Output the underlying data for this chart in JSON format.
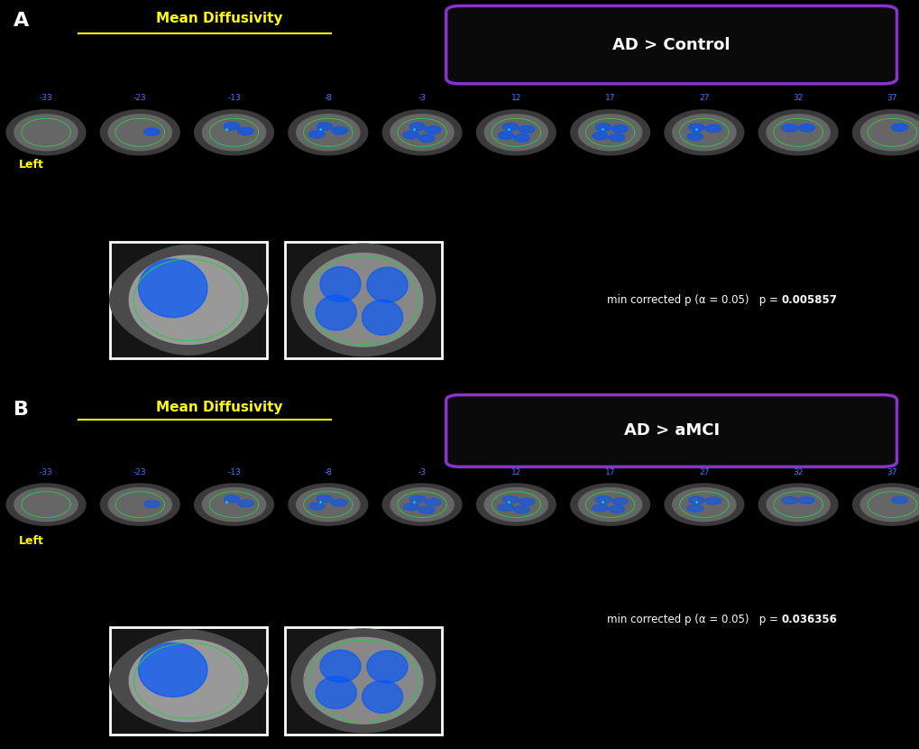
{
  "background_color": "#000000",
  "border_color": "#1a6aaa",
  "panel_a": {
    "label": "A",
    "title": "Mean Diffusivity",
    "title_color": "#ffff00",
    "box_label": "AD > Control",
    "box_text_color": "#ffffff",
    "box_bg_color": "#0a0a0a",
    "box_border_color": "#8833cc",
    "slice_numbers": [
      "-33",
      "-23",
      "-13",
      "-8",
      "-3",
      "12",
      "17",
      "27",
      "32",
      "37"
    ],
    "slice_number_color": "#4477ff",
    "left_label": "Left",
    "left_label_color": "#ffff00",
    "p_text_normal": "min corrected p (α = 0.05)   p =",
    "p_text_bold": "0.005857",
    "p_text_color": "#ffffff"
  },
  "panel_b": {
    "label": "B",
    "title": "Mean Diffusivity",
    "title_color": "#ffff00",
    "box_label": "AD > aMCI",
    "box_text_color": "#ffffff",
    "box_bg_color": "#0a0a0a",
    "box_border_color": "#8833cc",
    "slice_numbers": [
      "-33",
      "-23",
      "-13",
      "-8",
      "-3",
      "12",
      "17",
      "27",
      "32",
      "37"
    ],
    "slice_number_color": "#4477ff",
    "left_label": "Left",
    "left_label_color": "#ffff00",
    "p_text_normal": "min corrected p (α = 0.05)   p = ",
    "p_text_bold": "0.036356",
    "p_text_color": "#ffffff"
  },
  "divider_color": "#2255aa",
  "label_color": "#ffffff",
  "label_fontsize": 16
}
